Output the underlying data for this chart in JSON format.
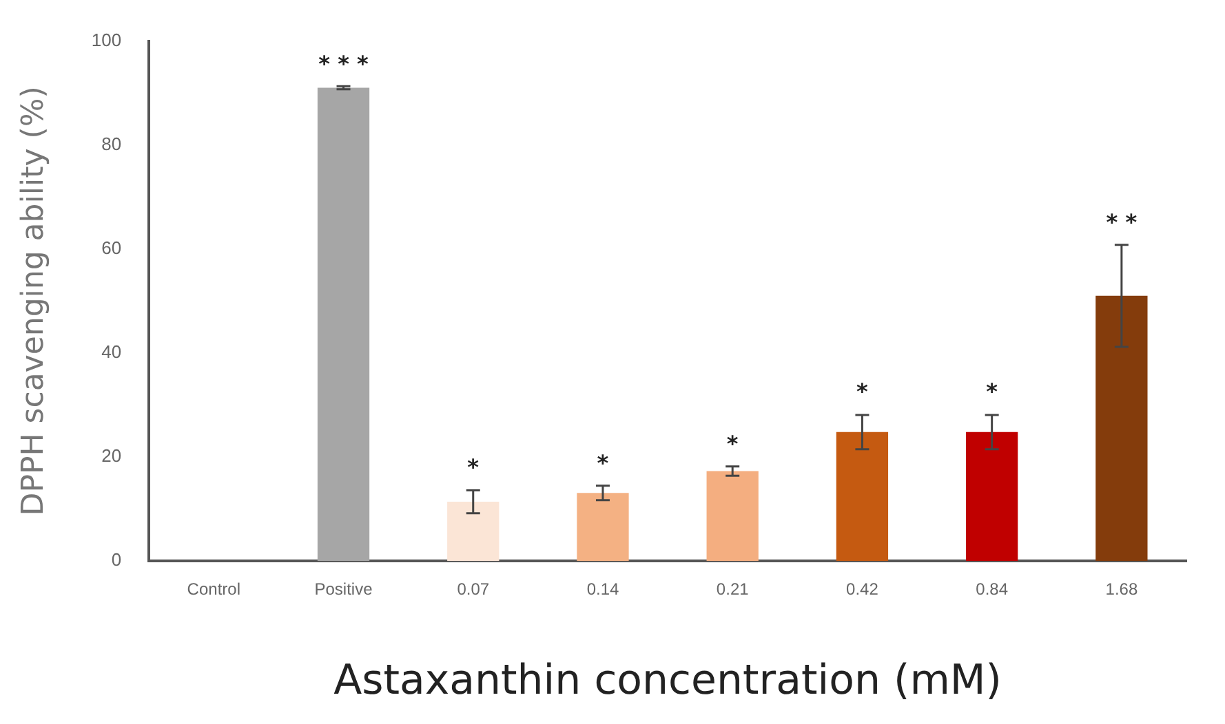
{
  "chart_data": {
    "type": "bar",
    "xlabel": "Astaxanthin concentration (mM)",
    "ylabel": "DPPH scavenging ability (%)",
    "categories": [
      "Control",
      "Positive",
      "0.07",
      "0.14",
      "0.21",
      "0.42",
      "0.84",
      "1.68"
    ],
    "values": [
      0,
      91,
      11.4,
      13.1,
      17.3,
      24.8,
      24.8,
      51
    ],
    "errors": [
      null,
      0.3,
      2.2,
      1.4,
      0.9,
      3.3,
      3.3,
      9.8
    ],
    "colors": [
      "#a6a6a6",
      "#a6a6a6",
      "#fbe5d6",
      "#f4b183",
      "#f4ae80",
      "#c55a11",
      "#c00000",
      "#843c0c"
    ],
    "ylim": [
      0,
      100
    ],
    "yticks": [
      0,
      20,
      40,
      60,
      80,
      100
    ],
    "grid": false,
    "legend": false,
    "annotations": [
      {
        "text": "* * *",
        "x": "Positive",
        "y": 91.3
      },
      {
        "text": "*",
        "x": "0.07",
        "y": 13.6
      },
      {
        "text": "*",
        "x": "0.14",
        "y": 14.5
      },
      {
        "text": "*",
        "x": "0.21",
        "y": 18.2
      },
      {
        "text": "*",
        "x": "0.42",
        "y": 28.1
      },
      {
        "text": "*",
        "x": "0.84",
        "y": 28.1
      },
      {
        "text": "* *",
        "x": "1.68",
        "y": 60.8
      }
    ]
  }
}
